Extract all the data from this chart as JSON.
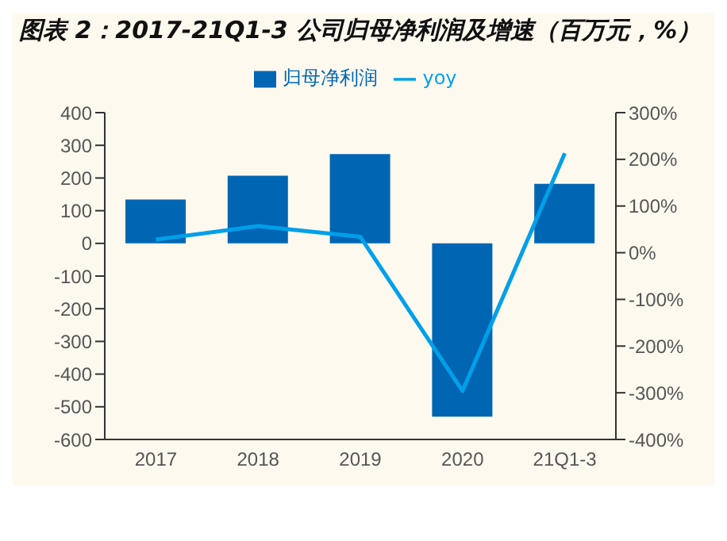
{
  "chart_data": {
    "type": "bar",
    "title": "图表 2：2017-21Q1-3 公司归母净利润及增速（百万元，%）",
    "categories": [
      "2017",
      "2018",
      "2019",
      "2020",
      "21Q1-3"
    ],
    "series": [
      {
        "name": "归母净利润",
        "color": "#0066b3",
        "values": [
          134,
          207,
          273,
          -530,
          182
        ]
      },
      {
        "name": "yoy",
        "type": "line",
        "axis": "y2",
        "color": "#00a0e9",
        "values": [
          28,
          57,
          34,
          -296,
          213
        ]
      }
    ],
    "ylim": [
      -600,
      400
    ],
    "yticks": [
      -600,
      -500,
      -400,
      -300,
      -200,
      -100,
      0,
      100,
      200,
      300,
      400
    ],
    "y2lim": [
      -400,
      300
    ],
    "y2ticks": [
      {
        "value": -400,
        "label": "-400%"
      },
      {
        "value": -300,
        "label": "-300%"
      },
      {
        "value": -200,
        "label": "-200%"
      },
      {
        "value": -100,
        "label": "-100%"
      },
      {
        "value": 0,
        "label": "0%"
      },
      {
        "value": 100,
        "label": "100%"
      },
      {
        "value": 200,
        "label": "200%"
      },
      {
        "value": 300,
        "label": "300%"
      }
    ],
    "legend": "top",
    "grid": false,
    "marker": "none",
    "line_style": "solid"
  }
}
